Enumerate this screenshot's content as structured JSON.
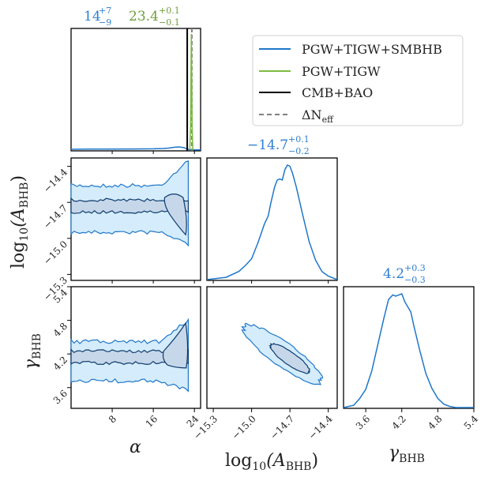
{
  "chart_data": {
    "type": "corner",
    "parameters": [
      {
        "key": "alpha",
        "label": "α",
        "range": [
          0,
          25.2
        ],
        "ticks": [
          8,
          16,
          24
        ]
      },
      {
        "key": "log10_A_BHB",
        "label": "log10(A_BHB)",
        "label_main": "log",
        "label_sub": "10",
        "label_paren": "(A",
        "label_sub2": "BHB",
        "label_close": ")",
        "range": [
          -15.35,
          -14.33
        ],
        "ticks": [
          -15.3,
          -15.0,
          -14.7,
          -14.4
        ],
        "tick_labels": [
          "−15.3",
          "−15.0",
          "−14.7",
          "−14.4"
        ]
      },
      {
        "key": "gamma_BHB",
        "label": "γBHB",
        "label_main": "γ",
        "label_sub": "BHB",
        "range": [
          3.23,
          5.4
        ],
        "ticks": [
          3.6,
          4.2,
          4.8,
          5.4
        ],
        "tick_labels": [
          "3.6",
          "4.2",
          "4.8",
          "5.4"
        ]
      }
    ],
    "titles": [
      {
        "panel": "alpha",
        "entries": [
          {
            "series": "PGW+TIGW+SMBHB",
            "value": "14",
            "plus": "+7",
            "minus": "−9"
          },
          {
            "series": "PGW+TIGW",
            "value": "23.4",
            "plus": "+0.1",
            "minus": "−0.1"
          }
        ]
      },
      {
        "panel": "log10_A_BHB",
        "entries": [
          {
            "series": "PGW+TIGW+SMBHB",
            "value": "−14.7",
            "plus": "+0.1",
            "minus": "−0.2"
          }
        ]
      },
      {
        "panel": "gamma_BHB",
        "entries": [
          {
            "series": "PGW+TIGW+SMBHB",
            "value": "4.2",
            "plus": "+0.3",
            "minus": "−0.3"
          }
        ]
      }
    ],
    "legend": {
      "placement": "top-right",
      "entries": [
        {
          "label": "PGW+TIGW+SMBHB",
          "color": "#1f77c9",
          "style": "solid"
        },
        {
          "label": "PGW+TIGW",
          "color": "#7cbb42",
          "style": "solid"
        },
        {
          "label": "CMB+BAO",
          "color": "#000000",
          "style": "solid"
        },
        {
          "label": "ΔN_eff",
          "label_main": "ΔN",
          "label_sub": "eff",
          "color": "#808080",
          "style": "dashed"
        }
      ]
    },
    "vertical_lines_alpha": [
      {
        "series": "CMB+BAO",
        "x": 22.6,
        "color": "#000000",
        "style": "solid"
      },
      {
        "series": "ΔN_eff",
        "x": 23.5,
        "color": "#808080",
        "style": "dashed"
      }
    ],
    "marginal_alpha": {
      "series": "PGW+TIGW+SMBHB",
      "x": [
        0,
        4,
        8,
        12,
        16,
        18,
        19,
        20,
        21,
        22,
        22.5,
        23,
        24,
        25.2
      ],
      "y": [
        0.01,
        0.012,
        0.013,
        0.014,
        0.016,
        0.02,
        0.025,
        0.035,
        0.04,
        0.03,
        0.015,
        0.005,
        0.003,
        0.003
      ]
    },
    "marginal_alpha_pgw_tigw": {
      "series": "PGW+TIGW",
      "x": [
        23.1,
        23.25,
        23.35,
        23.4,
        23.45,
        23.55,
        23.7
      ],
      "y": [
        0,
        0.2,
        0.8,
        1.0,
        0.8,
        0.2,
        0
      ]
    },
    "marginal_logA": {
      "series": "PGW+TIGW+SMBHB",
      "x": [
        -15.35,
        -15.2,
        -15.1,
        -15.05,
        -15.0,
        -14.95,
        -14.9,
        -14.87,
        -14.85,
        -14.82,
        -14.8,
        -14.78,
        -14.76,
        -14.74,
        -14.72,
        -14.7,
        -14.68,
        -14.65,
        -14.6,
        -14.55,
        -14.5,
        -14.45,
        -14.4,
        -14.33
      ],
      "y": [
        0.0,
        0.02,
        0.07,
        0.12,
        0.18,
        0.32,
        0.48,
        0.55,
        0.66,
        0.8,
        0.86,
        0.87,
        0.86,
        0.95,
        0.99,
        0.98,
        0.92,
        0.8,
        0.56,
        0.33,
        0.17,
        0.07,
        0.03,
        0.0
      ]
    },
    "marginal_gamma": {
      "series": "PGW+TIGW+SMBHB",
      "x": [
        3.23,
        3.4,
        3.5,
        3.6,
        3.7,
        3.8,
        3.9,
        3.98,
        4.05,
        4.1,
        4.15,
        4.2,
        4.25,
        4.35,
        4.4,
        4.5,
        4.6,
        4.7,
        4.8,
        4.9,
        5.0,
        5.1,
        5.4
      ],
      "y": [
        0.0,
        0.02,
        0.08,
        0.16,
        0.32,
        0.55,
        0.78,
        0.95,
        0.99,
        0.98,
        0.99,
        1.0,
        0.93,
        0.84,
        0.72,
        0.5,
        0.3,
        0.17,
        0.08,
        0.03,
        0.01,
        0.0,
        0.0
      ]
    },
    "contours": {
      "alpha_vs_logA": {
        "outer_y_range": [
          -14.95,
          -14.55
        ],
        "inner_y_center": -14.73,
        "hotspot_alpha": [
          18,
          22.5
        ]
      },
      "alpha_vs_gamma": {
        "outer_y_range": [
          3.7,
          4.5
        ],
        "inner_y_center": 4.15,
        "hotspot_alpha": [
          18,
          22.5
        ]
      },
      "logA_vs_gamma": {
        "correlation": "negative",
        "outer": {
          "center": [
            -14.76,
            4.2
          ]
        },
        "inner": {
          "center": [
            -14.7,
            4.1
          ]
        }
      }
    },
    "colors": {
      "smbhb": "#1f77c9",
      "smbhb_dark": "#0d3c6e",
      "fill_outer": "#d4ecfb",
      "fill_inner": "#c7d7ea",
      "pgw_tigw": "#7cbb42",
      "cmb": "#000000",
      "neff": "#808080",
      "title_blue": "#2f7fd0",
      "title_green": "#6f9f3a"
    }
  }
}
